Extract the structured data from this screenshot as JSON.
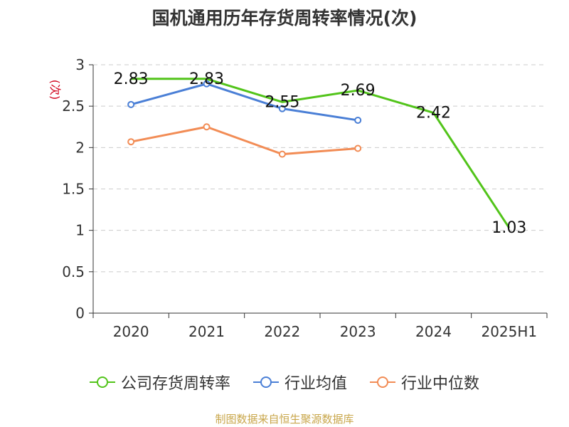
{
  "title": "国机通用历年存货周转率情况(次)",
  "source": "制图数据来自恒生聚源数据库",
  "chart_data": {
    "type": "line",
    "title": "国机通用历年存货周转率情况(次)",
    "ylabel": "(次)",
    "xlabel": "",
    "categories": [
      "2020",
      "2021",
      "2022",
      "2023",
      "2024",
      "2025H1"
    ],
    "ylim": [
      0,
      3
    ],
    "yticks": [
      "0",
      "0.5",
      "1",
      "1.5",
      "2",
      "2.5",
      "3"
    ],
    "grid": true,
    "legend_position": "bottom",
    "series": [
      {
        "name": "公司存货周转率",
        "color": "#52c41a",
        "values": [
          2.83,
          2.83,
          2.55,
          2.69,
          2.42,
          1.03
        ],
        "labels": [
          "2.83",
          "2.83",
          "2.55",
          "2.69",
          "2.42",
          "1.03"
        ]
      },
      {
        "name": "行业均值",
        "color": "#4a7fd6",
        "values": [
          2.52,
          2.77,
          2.47,
          2.33,
          null,
          null
        ]
      },
      {
        "name": "行业中位数",
        "color": "#f28c55",
        "values": [
          2.07,
          2.25,
          1.92,
          1.99,
          null,
          null
        ]
      }
    ]
  }
}
